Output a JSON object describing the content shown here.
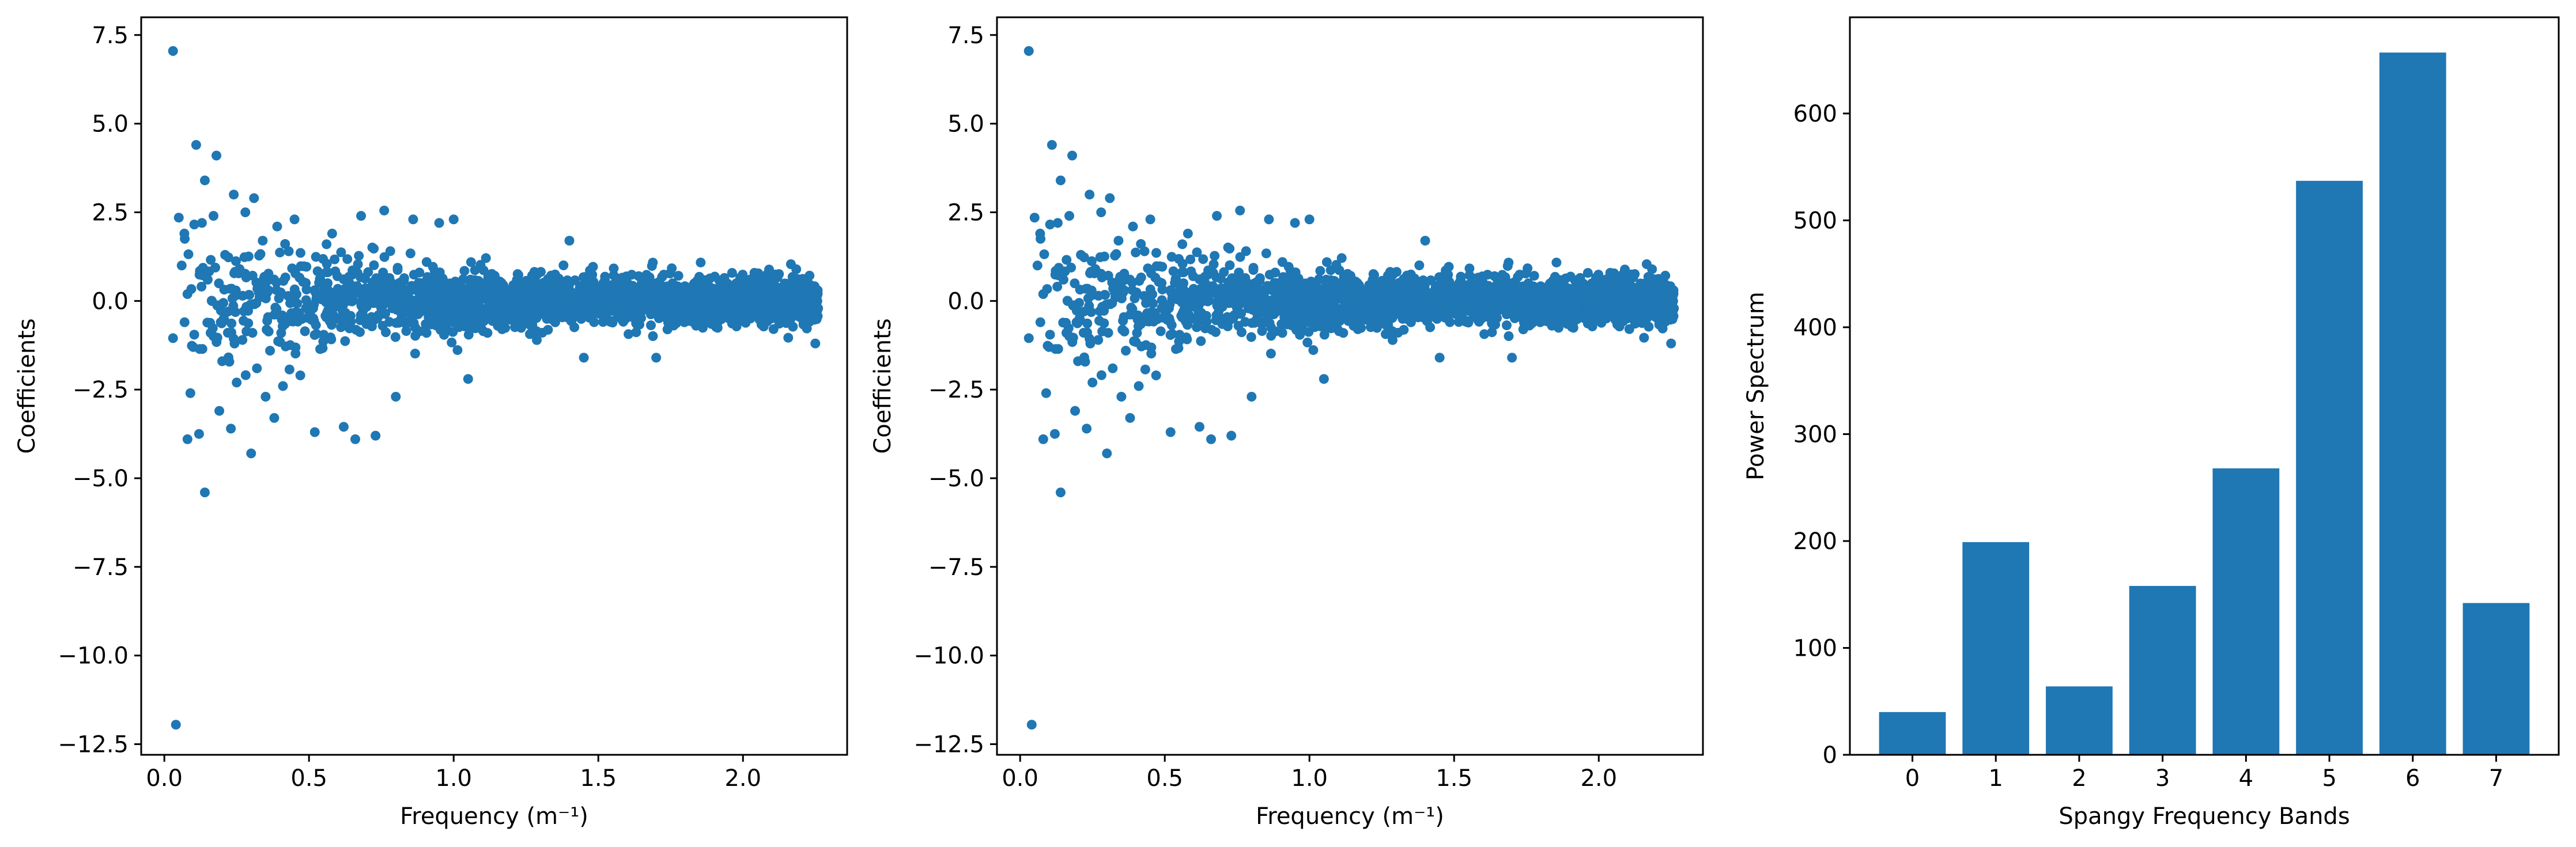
{
  "figure": {
    "colors": {
      "marker": "#1f77b4",
      "axes": "#000000",
      "background": "#ffffff"
    }
  },
  "chart_data": [
    {
      "type": "scatter",
      "xlabel": "Frequency (m⁻¹)",
      "ylabel": "Coefficients",
      "xlim": [
        -0.08,
        2.36
      ],
      "ylim": [
        -12.8,
        8.0
      ],
      "x_ticks": [
        0.0,
        0.5,
        1.0,
        1.5,
        2.0
      ],
      "x_tick_labels": [
        "0.0",
        "0.5",
        "1.0",
        "1.5",
        "2.0"
      ],
      "y_ticks": [
        -12.5,
        -10.0,
        -7.5,
        -5.0,
        -2.5,
        0.0,
        2.5,
        5.0,
        7.5
      ],
      "y_tick_labels": [
        "−12.5",
        "−10.0",
        "−7.5",
        "−5.0",
        "−2.5",
        "0.0",
        "2.5",
        "5.0",
        "7.5"
      ],
      "grid": false,
      "points": [
        [
          0.03,
          7.05
        ],
        [
          0.04,
          -11.95
        ],
        [
          0.03,
          -1.05
        ],
        [
          0.05,
          2.35
        ],
        [
          0.06,
          1.0
        ],
        [
          0.07,
          -0.6
        ],
        [
          0.08,
          -3.9
        ],
        [
          0.09,
          -2.6
        ],
        [
          0.1,
          -1.3
        ],
        [
          0.11,
          4.4
        ],
        [
          0.12,
          -3.75
        ],
        [
          0.13,
          2.2
        ],
        [
          0.14,
          -5.4
        ],
        [
          0.14,
          3.4
        ],
        [
          0.15,
          0.6
        ],
        [
          0.16,
          -0.9
        ],
        [
          0.17,
          2.4
        ],
        [
          0.18,
          4.1
        ],
        [
          0.19,
          -3.1
        ],
        [
          0.2,
          -1.7
        ],
        [
          0.21,
          1.3
        ],
        [
          0.22,
          -0.3
        ],
        [
          0.23,
          -3.6
        ],
        [
          0.24,
          3.0
        ],
        [
          0.25,
          -2.3
        ],
        [
          0.26,
          0.9
        ],
        [
          0.27,
          -1.1
        ],
        [
          0.28,
          2.5
        ],
        [
          0.3,
          -4.3
        ],
        [
          0.31,
          2.9
        ],
        [
          0.32,
          -1.9
        ],
        [
          0.34,
          1.7
        ],
        [
          0.35,
          -2.7
        ],
        [
          0.36,
          0.3
        ],
        [
          0.38,
          -3.3
        ],
        [
          0.39,
          2.1
        ],
        [
          0.41,
          -2.4
        ],
        [
          0.43,
          1.4
        ],
        [
          0.45,
          2.3
        ],
        [
          0.47,
          -2.1
        ],
        [
          0.52,
          -3.7
        ],
        [
          0.58,
          1.9
        ],
        [
          0.62,
          -3.55
        ],
        [
          0.66,
          -3.9
        ],
        [
          0.68,
          2.4
        ],
        [
          0.73,
          -3.8
        ],
        [
          0.76,
          2.55
        ],
        [
          0.8,
          -2.7
        ],
        [
          0.86,
          2.3
        ],
        [
          0.95,
          2.2
        ],
        [
          1.0,
          2.3
        ],
        [
          1.05,
          -2.2
        ],
        [
          1.4,
          1.7
        ],
        [
          1.45,
          -1.6
        ],
        [
          1.7,
          -1.6
        ],
        [
          2.25,
          -1.2
        ]
      ],
      "cloud": {
        "x_range": [
          0.05,
          2.26
        ],
        "spread_note": "dense band of roughly 2200 coefficients tapering from about ±2.3 at low frequency to about ±0.9 at high frequency"
      }
    },
    {
      "type": "scatter",
      "xlabel": "Frequency (m⁻¹)",
      "ylabel": "Coefficients",
      "xlim": [
        -0.08,
        2.36
      ],
      "ylim": [
        -12.8,
        8.0
      ],
      "x_ticks": [
        0.0,
        0.5,
        1.0,
        1.5,
        2.0
      ],
      "x_tick_labels": [
        "0.0",
        "0.5",
        "1.0",
        "1.5",
        "2.0"
      ],
      "y_ticks": [
        -12.5,
        -10.0,
        -7.5,
        -5.0,
        -2.5,
        0.0,
        2.5,
        5.0,
        7.5
      ],
      "y_tick_labels": [
        "−12.5",
        "−10.0",
        "−7.5",
        "−5.0",
        "−2.5",
        "0.0",
        "2.5",
        "5.0",
        "7.5"
      ],
      "grid": false,
      "same_as_panel": 0
    },
    {
      "type": "bar",
      "xlabel": "Spangy Frequency Bands",
      "ylabel": "Power Spectrum",
      "categories": [
        "0",
        "1",
        "2",
        "3",
        "4",
        "5",
        "6",
        "7"
      ],
      "values": [
        40,
        199,
        64,
        158,
        268,
        537,
        657,
        142
      ],
      "ylim": [
        0,
        690
      ],
      "y_ticks": [
        0,
        100,
        200,
        300,
        400,
        500,
        600
      ],
      "y_tick_labels": [
        "0",
        "100",
        "200",
        "300",
        "400",
        "500",
        "600"
      ],
      "grid": false
    }
  ]
}
